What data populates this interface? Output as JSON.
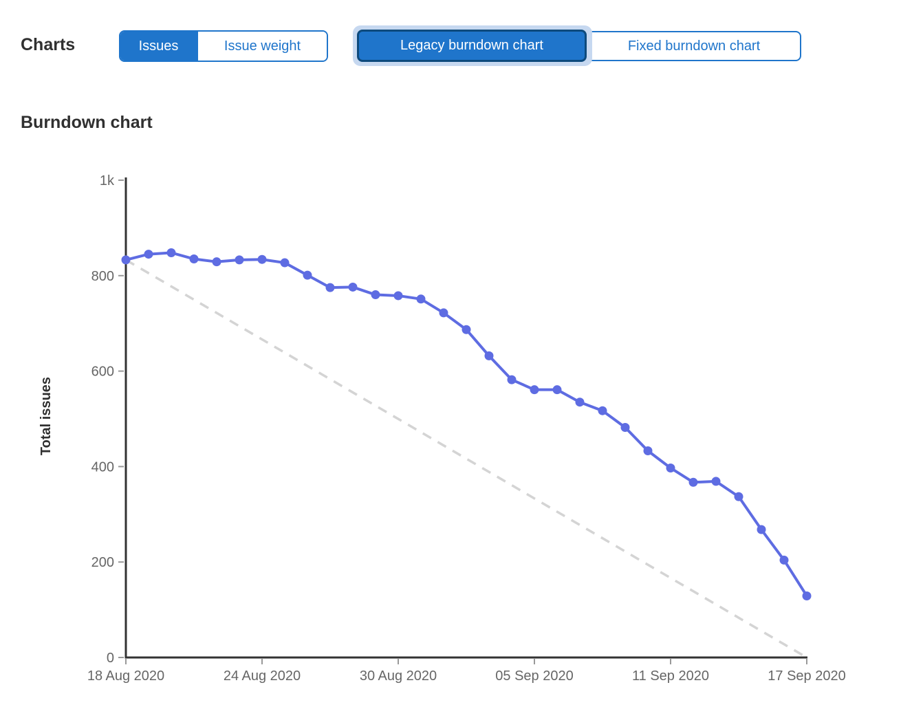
{
  "header": {
    "charts_label": "Charts",
    "metric_toggle": [
      {
        "label": "Issues",
        "selected": true
      },
      {
        "label": "Issue weight",
        "selected": false
      }
    ],
    "chart_type_toggle": [
      {
        "label": "Legacy burndown chart",
        "selected": true,
        "focused": true
      },
      {
        "label": "Fixed burndown chart",
        "selected": false
      }
    ]
  },
  "section_title": "Burndown chart",
  "colors": {
    "accent": "#1f75cb",
    "selected_button_border": "#0d4a7d",
    "focus_ring": "#c6d8f0",
    "series_blue": "#5e6ce2",
    "guideline_gray": "#d4d4d4",
    "axis": "#333333",
    "tick": "#999999",
    "tick_label": "#666666",
    "heading_text": "#303030"
  },
  "chart_data": {
    "type": "line",
    "title": "Burndown chart",
    "xlabel": "",
    "ylabel": "Total issues",
    "ylim": [
      0,
      1000
    ],
    "grid": false,
    "legend_position": "none",
    "x_start": "18 Aug 2020",
    "x_end": "17 Sep 2020",
    "x_interval": "daily",
    "x_range_days": 30,
    "y_ticks": [
      {
        "value": 0,
        "label": "0"
      },
      {
        "value": 200,
        "label": "200"
      },
      {
        "value": 400,
        "label": "400"
      },
      {
        "value": 600,
        "label": "600"
      },
      {
        "value": 800,
        "label": "800"
      },
      {
        "value": 1000,
        "label": "1k"
      }
    ],
    "x_ticks": [
      {
        "day": 0,
        "label": "18 Aug 2020"
      },
      {
        "day": 6,
        "label": "24 Aug 2020"
      },
      {
        "day": 12,
        "label": "30 Aug 2020"
      },
      {
        "day": 18,
        "label": "05 Sep 2020"
      },
      {
        "day": 24,
        "label": "11 Sep 2020"
      },
      {
        "day": 30,
        "label": "17 Sep 2020"
      }
    ],
    "series": [
      {
        "name": "Total issues remaining",
        "type": "line",
        "color": "#5e6ce2",
        "values": [
          833,
          845,
          848,
          835,
          829,
          833,
          834,
          827,
          801,
          775,
          776,
          760,
          758,
          751,
          722,
          687,
          632,
          582,
          561,
          561,
          535,
          517,
          482,
          433,
          397,
          367,
          369,
          337,
          268,
          204,
          129
        ]
      },
      {
        "name": "Guideline (ideal pace)",
        "type": "dashed-line",
        "color": "#d4d4d4",
        "values_endpoints": [
          833,
          0
        ]
      }
    ]
  }
}
